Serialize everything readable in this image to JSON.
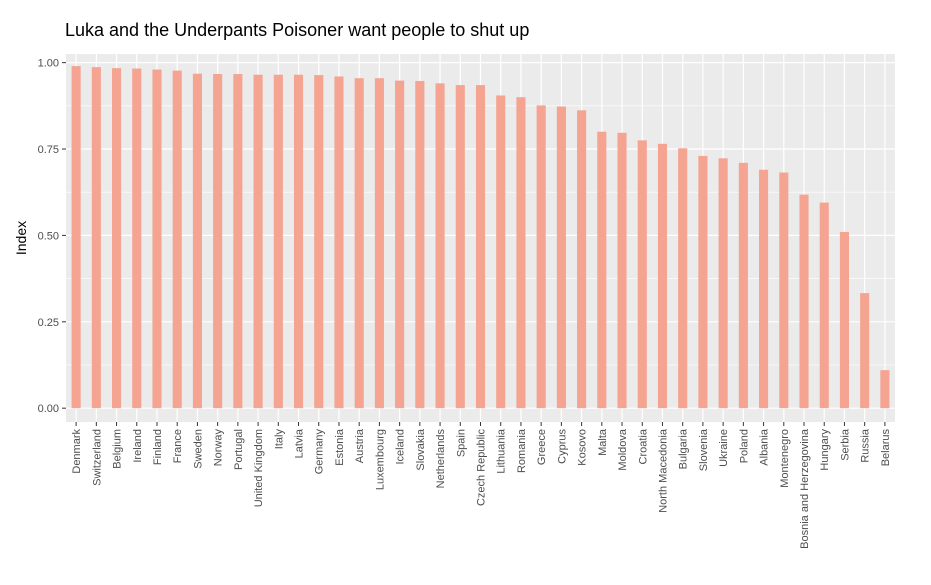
{
  "chart_data": {
    "type": "bar",
    "title": "Luka and the Underpants Poisoner want people to shut up",
    "xlabel": "",
    "ylabel": "Index",
    "ylim": [
      -0.04,
      1.025
    ],
    "yticks": [
      "0.00",
      "0.25",
      "0.50",
      "0.75",
      "1.00"
    ],
    "grid": true,
    "bar_color": "#F4A490",
    "panel_color": "#EBEBEB",
    "categories": [
      "Denmark",
      "Switzerland",
      "Belgium",
      "Ireland",
      "Finland",
      "France",
      "Sweden",
      "Norway",
      "Portugal",
      "United Kingdom",
      "Italy",
      "Latvia",
      "Germany",
      "Estonia",
      "Austria",
      "Luxembourg",
      "Iceland",
      "Slovakia",
      "Netherlands",
      "Spain",
      "Czech Republic",
      "Lithuania",
      "Romania",
      "Greece",
      "Cyprus",
      "Kosovo",
      "Malta",
      "Moldova",
      "Croatia",
      "North Macedonia",
      "Bulgaria",
      "Slovenia",
      "Ukraine",
      "Poland",
      "Albania",
      "Montenegro",
      "Bosnia and Herzegovina",
      "Hungary",
      "Serbia",
      "Russia",
      "Belarus"
    ],
    "values": [
      0.99,
      0.987,
      0.984,
      0.983,
      0.98,
      0.977,
      0.968,
      0.967,
      0.967,
      0.965,
      0.965,
      0.965,
      0.964,
      0.96,
      0.955,
      0.955,
      0.948,
      0.947,
      0.94,
      0.935,
      0.935,
      0.905,
      0.9,
      0.876,
      0.873,
      0.862,
      0.8,
      0.797,
      0.775,
      0.765,
      0.752,
      0.73,
      0.723,
      0.71,
      0.69,
      0.682,
      0.618,
      0.595,
      0.51,
      0.333,
      0.11
    ]
  }
}
